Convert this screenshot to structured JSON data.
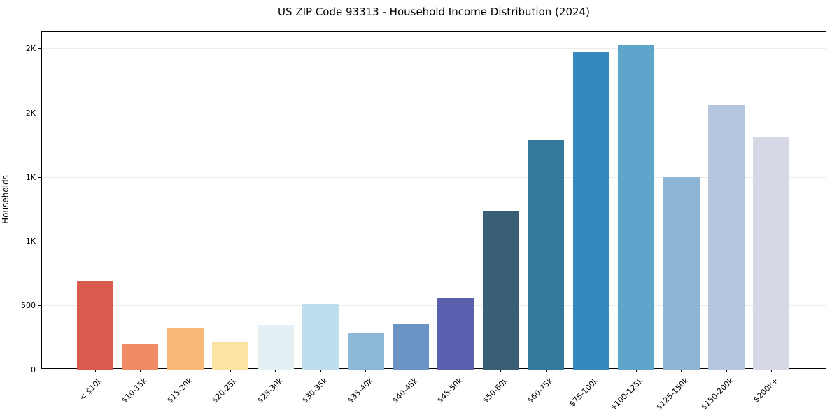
{
  "chart_data": {
    "type": "bar",
    "title": "US ZIP Code 93313 - Household Income Distribution (2024)",
    "xlabel": "",
    "ylabel": "Households",
    "categories": [
      "< $10k",
      "$10-15k",
      "$15-20k",
      "$20-25k",
      "$25-30k",
      "$30-35k",
      "$35-40k",
      "$40-45k",
      "$45-50k",
      "$50-60k",
      "$60-75k",
      "$75-100k",
      "$100-125k",
      "$125-150k",
      "$150-200k",
      "$200k+"
    ],
    "values": [
      690,
      200,
      325,
      215,
      350,
      515,
      285,
      355,
      555,
      1235,
      1790,
      2475,
      2525,
      1500,
      2060,
      1815
    ],
    "bar_colors": [
      "#d95b50",
      "#ef8a66",
      "#f9b877",
      "#fbe3a4",
      "#e4f0f4",
      "#bedeee",
      "#8db7d7",
      "#6b93c6",
      "#5a5fae",
      "#385f73",
      "#337a9d",
      "#348abc",
      "#5da5cb",
      "#8fb5d5",
      "#b4c7de",
      "#d6d9e5"
    ],
    "yticks": {
      "values": [
        0,
        500,
        1000,
        1500,
        2000,
        2500
      ],
      "labels": [
        "0",
        "500",
        "1K",
        "1K",
        "2K",
        "2K"
      ]
    },
    "ylim": [
      0,
      2630
    ],
    "grid": true,
    "gridline_color": "#ececec",
    "spine_color": "#000000",
    "background_color": "#ffffff",
    "legend": "none",
    "x_tick_rotation_deg": 45
  }
}
